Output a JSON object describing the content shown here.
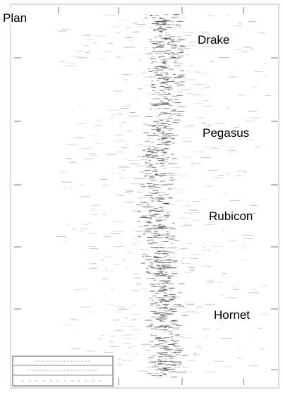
{
  "title": "Plan",
  "labels": [
    "Drake",
    "Pegasus",
    "Rubicon",
    "Hornet"
  ]
}
